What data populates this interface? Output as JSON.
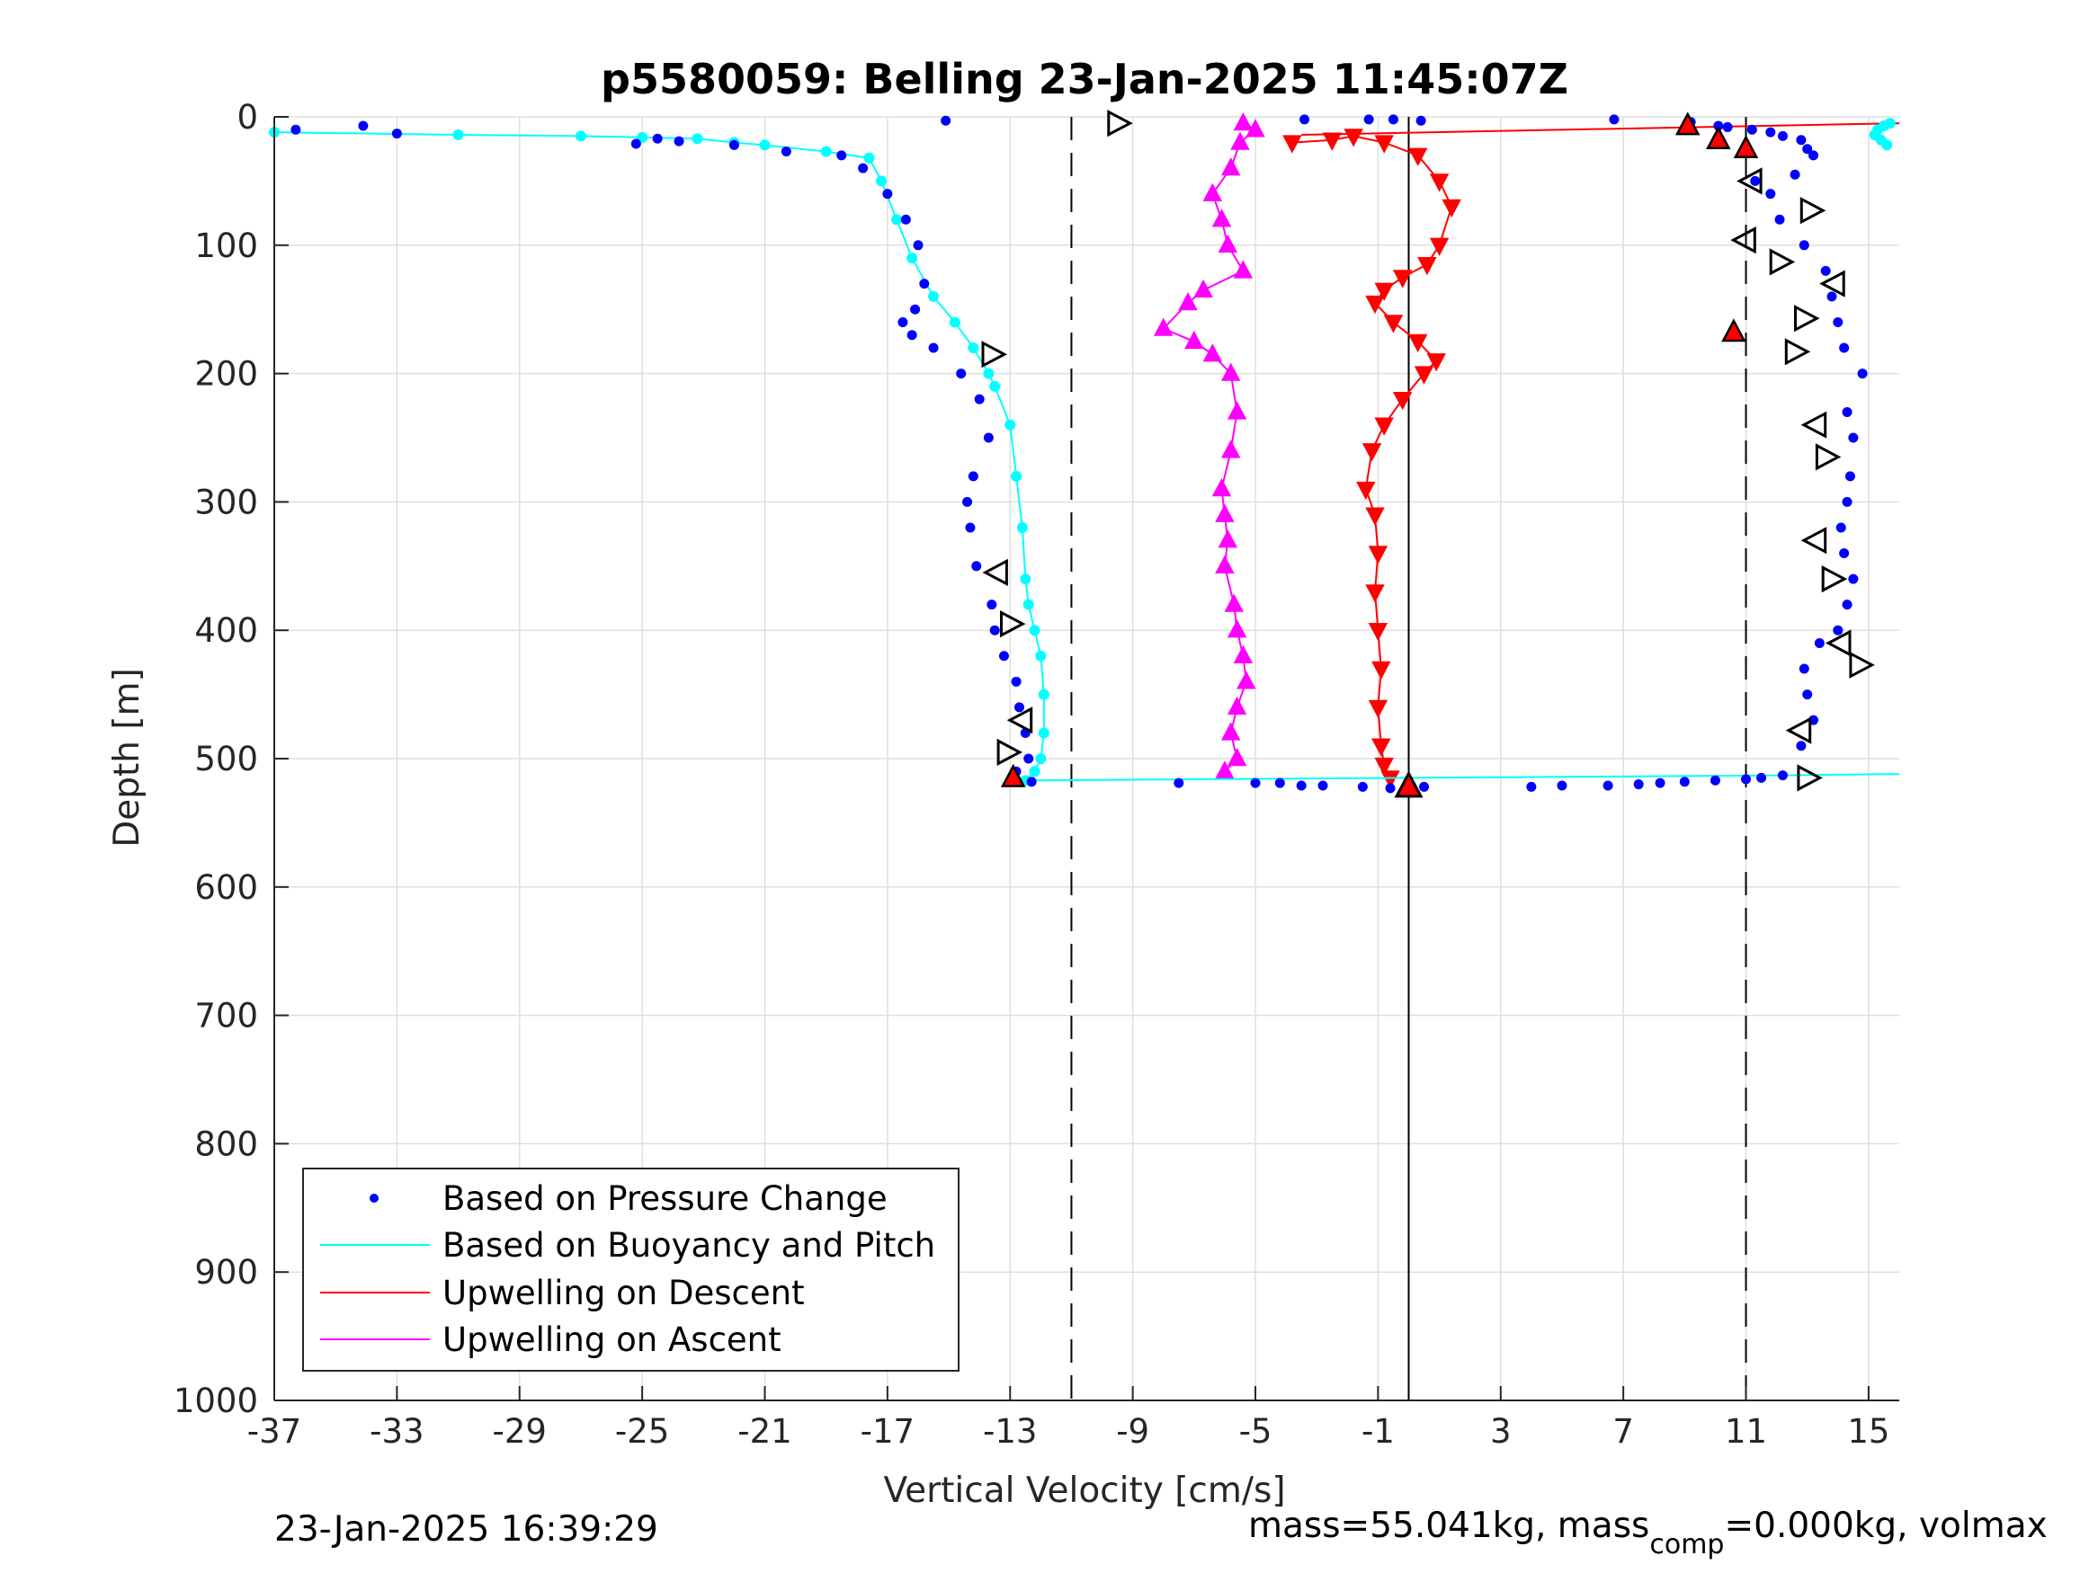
{
  "chart_data": {
    "type": "scatter",
    "title": "p5580059: Belling 23-Jan-2025 11:45:07Z",
    "xlabel": "Vertical Velocity [cm/s]",
    "ylabel": "Depth [m]",
    "xlim": [
      -37,
      16
    ],
    "ylim": [
      0,
      1000
    ],
    "y_reversed": true,
    "grid": true,
    "x_ticks": [
      -37,
      -33,
      -29,
      -25,
      -21,
      -17,
      -13,
      -9,
      -5,
      -1,
      3,
      7,
      11,
      15
    ],
    "x_tick_labels": [
      "-37",
      "-33",
      "-29",
      "-25",
      "-21",
      "-17",
      "-13",
      "-9",
      "-5",
      "-1",
      "3",
      "7",
      "11",
      "15"
    ],
    "y_ticks": [
      0,
      100,
      200,
      300,
      400,
      500,
      600,
      700,
      800,
      900,
      1000
    ],
    "y_tick_labels": [
      "0",
      "100",
      "200",
      "300",
      "400",
      "500",
      "600",
      "700",
      "800",
      "900",
      "1000"
    ],
    "reference_lines": {
      "dashed_x": [
        -11,
        11
      ],
      "solid_x": [
        0
      ]
    },
    "legend": {
      "placement": "bottom-left",
      "entries": [
        "Based on Pressure Change",
        "Based on Buoyancy and Pitch",
        "Upwelling on Descent",
        "Upwelling on Ascent"
      ]
    },
    "colors": {
      "pressure": "#0000ff",
      "buoyancy": "#00ffff",
      "descent": "#ff0000",
      "ascent": "#ff00ff",
      "axis": "#262626",
      "grid": "#dfdfdf"
    },
    "series": [
      {
        "name": "Based on Pressure Change",
        "style": "dots",
        "color": "#0000ff",
        "descent": {
          "x": [
            -36.3,
            -34.1,
            -33.0,
            -25.2,
            -24.5,
            -23.8,
            -22.0,
            -20.3,
            -18.5,
            -17.8,
            -17.0,
            -16.4,
            -16.0,
            -15.8,
            -16.1,
            -16.5,
            -16.2,
            -15.5,
            -14.6,
            -14.0,
            -13.7,
            -14.2,
            -14.4,
            -14.3,
            -14.1,
            -13.6,
            -13.5,
            -13.2,
            -12.8,
            -12.7,
            -12.5,
            -12.4,
            -12.8,
            -12.3
          ],
          "y": [
            10,
            7,
            13,
            21,
            17,
            19,
            22,
            27,
            30,
            40,
            60,
            80,
            100,
            130,
            150,
            160,
            170,
            180,
            200,
            220,
            250,
            280,
            300,
            320,
            350,
            380,
            400,
            420,
            440,
            460,
            480,
            500,
            510,
            518
          ]
        },
        "bottom": {
          "x": [
            -7.5,
            -5.0,
            -4.2,
            -3.5,
            -2.8,
            -1.5,
            -0.6,
            0.5,
            4.0,
            5.0,
            6.5,
            7.5,
            8.2,
            9.0,
            10.0,
            11.0,
            11.5,
            12.2
          ],
          "y": [
            519,
            519,
            519,
            521,
            521,
            522,
            523,
            522,
            522,
            521,
            521,
            520,
            519,
            518,
            517,
            516,
            515,
            513
          ]
        },
        "ascent": {
          "x": [
            12.8,
            13.2,
            13.0,
            12.9,
            13.4,
            14.0,
            14.3,
            14.5,
            14.2,
            14.1,
            14.3,
            14.4,
            14.5,
            14.3,
            14.8,
            14.2,
            14.0,
            13.8,
            13.6,
            12.9,
            12.1,
            11.8,
            11.3,
            12.6,
            13.2,
            13.0,
            12.8,
            12.2,
            11.8,
            11.2,
            10.4,
            10.1,
            9.2,
            6.7,
            0.4,
            -0.5,
            -1.3,
            -3.4,
            -15.1
          ],
          "y": [
            490,
            470,
            450,
            430,
            410,
            400,
            380,
            360,
            340,
            320,
            300,
            280,
            250,
            230,
            200,
            180,
            160,
            140,
            120,
            100,
            80,
            60,
            50,
            45,
            30,
            25,
            18,
            15,
            12,
            10,
            8,
            7,
            4,
            2,
            3,
            2,
            2,
            2,
            3
          ]
        }
      },
      {
        "name": "Based on Buoyancy and Pitch",
        "style": "line+dots",
        "color": "#00ffff",
        "descent": {
          "x": [
            -37.0,
            -31.0,
            -27.0,
            -25.0,
            -23.2,
            -22.0,
            -21.0,
            -19.0,
            -17.6,
            -17.2,
            -16.7,
            -16.2,
            -15.5,
            -14.8,
            -14.2,
            -13.7,
            -13.5,
            -13.0,
            -12.8,
            -12.6,
            -12.5,
            -12.4,
            -12.2,
            -12.0,
            -11.9,
            -11.9,
            -12.0,
            -12.2,
            -12.5
          ],
          "y": [
            12,
            14,
            15,
            16,
            17,
            20,
            22,
            27,
            32,
            50,
            80,
            110,
            140,
            160,
            180,
            200,
            210,
            240,
            280,
            320,
            360,
            380,
            400,
            420,
            450,
            480,
            500,
            510,
            517
          ]
        },
        "bottom": {
          "x": [
            -12.5,
            -6.0,
            0.0,
            6.0,
            12.0,
            16.0
          ],
          "y": [
            517,
            516,
            515,
            514,
            513,
            512
          ]
        },
        "ascent": {
          "x": [
            15.6,
            15.4,
            15.2,
            15.3,
            15.5,
            15.7
          ],
          "y": [
            22,
            18,
            14,
            10,
            7,
            5
          ]
        }
      },
      {
        "name": "Upwelling on Descent",
        "style": "down-triangles",
        "color": "#ff0000",
        "points": {
          "x": [
            -3.8,
            -2.5,
            -1.8,
            -0.8,
            0.3,
            1.0,
            1.4,
            1.0,
            0.6,
            -0.2,
            -0.8,
            -1.1,
            -0.5,
            0.3,
            0.9,
            0.5,
            -0.2,
            -0.8,
            -1.2,
            -1.4,
            -1.1,
            -1.0,
            -1.1,
            -1.0,
            -0.9,
            -1.0,
            -0.9,
            -0.8,
            -0.6
          ],
          "y": [
            20,
            18,
            15,
            20,
            30,
            50,
            70,
            100,
            115,
            125,
            135,
            145,
            160,
            175,
            190,
            200,
            220,
            240,
            260,
            290,
            310,
            340,
            370,
            400,
            430,
            460,
            490,
            505,
            515
          ]
        },
        "surface_link": {
          "x": [
            -3.5,
            16.0
          ],
          "y": [
            14,
            5
          ]
        }
      },
      {
        "name": "Upwelling on Ascent",
        "style": "up-triangles",
        "color": "#ff00ff",
        "points": {
          "x": [
            -5.4,
            -5.0,
            -5.5,
            -5.8,
            -6.4,
            -6.1,
            -5.9,
            -5.4,
            -6.7,
            -7.2,
            -8.0,
            -7.0,
            -6.4,
            -5.8,
            -5.6,
            -5.8,
            -6.1,
            -6.0,
            -5.9,
            -6.0,
            -5.7,
            -5.6,
            -5.4,
            -5.3,
            -5.6,
            -5.8,
            -5.6,
            -6.0
          ],
          "y": [
            5,
            10,
            20,
            40,
            60,
            80,
            100,
            120,
            135,
            145,
            165,
            175,
            185,
            200,
            230,
            260,
            290,
            310,
            330,
            350,
            380,
            400,
            420,
            440,
            460,
            480,
            500,
            510
          ]
        }
      }
    ],
    "markers": {
      "right_open": {
        "x": [
          -9.5,
          -13.6,
          -13.0,
          -13.1,
          13.1,
          12.1,
          12.9,
          12.6,
          13.6,
          13.8,
          14.7,
          13.0
        ],
        "y": [
          5,
          185,
          395,
          495,
          73,
          113,
          157,
          183,
          265,
          360,
          427,
          515
        ]
      },
      "left_open": {
        "x": [
          11.2,
          11.0,
          13.9,
          13.3,
          13.3,
          14.1,
          12.8,
          -13.4,
          -12.6
        ],
        "y": [
          50,
          96,
          130,
          240,
          330,
          410,
          478,
          355,
          470
        ]
      },
      "red_filled": {
        "x": [
          9.1,
          10.1,
          11.0,
          10.6,
          -12.9
        ],
        "y": [
          7,
          18,
          25,
          168,
          515
        ]
      },
      "bottom_up_triangle": {
        "x": [
          0.0
        ],
        "y": [
          522
        ]
      }
    }
  },
  "footer": {
    "timestamp": "23-Jan-2025 16:39:29",
    "mass_text": "mass=55.041kg, mass",
    "mass_subscript": "comp",
    "mass_tail": "=0.000kg, volmax"
  }
}
